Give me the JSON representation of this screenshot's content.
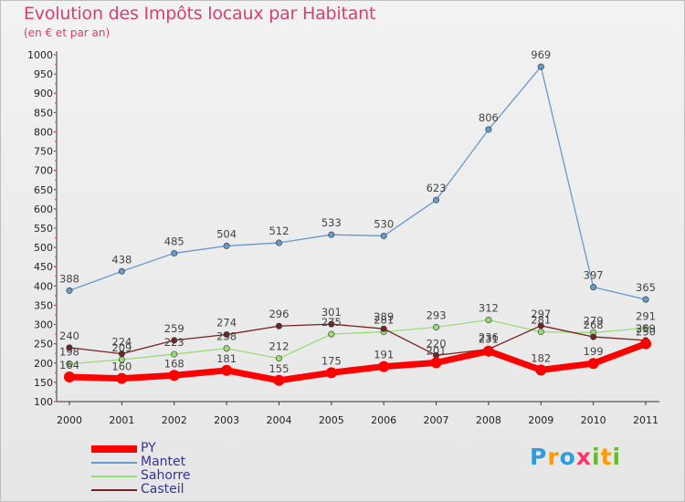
{
  "chart_data": {
    "type": "line",
    "title": "Evolution des Impôts locaux par Habitant",
    "subtitle": "(en € et par an)",
    "x": [
      "2000",
      "2001",
      "2002",
      "2003",
      "2004",
      "2005",
      "2006",
      "2007",
      "2008",
      "2009",
      "2010",
      "2011"
    ],
    "ylim": [
      100,
      1000
    ],
    "yticks": [
      100,
      150,
      200,
      250,
      300,
      350,
      400,
      450,
      500,
      550,
      600,
      650,
      700,
      750,
      800,
      850,
      900,
      950,
      1000
    ],
    "grid": false,
    "legend_position": "bottom-left",
    "series": [
      {
        "name": "PY",
        "color": "#ff0000",
        "values": [
          164,
          160,
          168,
          181,
          155,
          175,
          191,
          201,
          231,
          182,
          199,
          250
        ]
      },
      {
        "name": "Mantet",
        "color": "#6699cc",
        "values": [
          388,
          438,
          485,
          504,
          512,
          533,
          530,
          623,
          806,
          969,
          397,
          365
        ]
      },
      {
        "name": "Sahorre",
        "color": "#99dd77",
        "values": [
          198,
          209,
          223,
          238,
          212,
          275,
          281,
          293,
          312,
          281,
          279,
          291
        ]
      },
      {
        "name": "Casteil",
        "color": "#772222",
        "values": [
          240,
          224,
          259,
          274,
          296,
          301,
          289,
          220,
          236,
          297,
          268,
          259
        ]
      }
    ]
  },
  "logo": {
    "letters": [
      "P",
      "r",
      "o",
      "x",
      "i",
      "t",
      "i"
    ],
    "colors": [
      "#3399dd",
      "#ff9900",
      "#3399dd",
      "#ff3366",
      "#66bb33",
      "#ff9900",
      "#66bb33"
    ]
  }
}
